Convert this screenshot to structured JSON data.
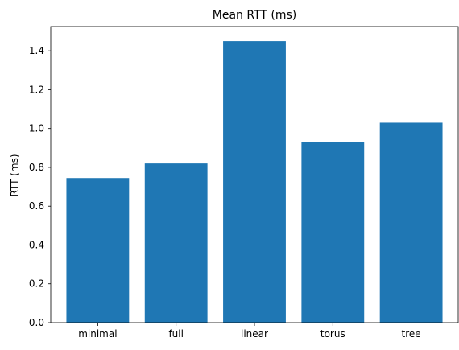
{
  "chart_data": {
    "type": "bar",
    "title": "Mean RTT (ms)",
    "xlabel": "",
    "ylabel": "RTT (ms)",
    "categories": [
      "minimal",
      "full",
      "linear",
      "torus",
      "tree"
    ],
    "values": [
      0.745,
      0.82,
      1.45,
      0.93,
      1.03
    ],
    "ylim": [
      0,
      1.525
    ],
    "yticks": [
      0.0,
      0.2,
      0.4,
      0.6,
      0.8,
      1.0,
      1.2,
      1.4
    ],
    "ytick_labels": [
      "0.0",
      "0.2",
      "0.4",
      "0.6",
      "0.8",
      "1.0",
      "1.2",
      "1.4"
    ],
    "bar_color": "#1f77b4",
    "grid": false
  }
}
